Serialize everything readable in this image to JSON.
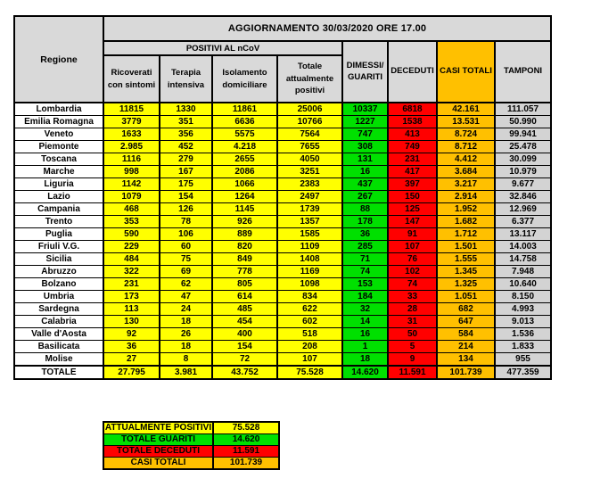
{
  "colors": {
    "positivi": "#FFFF00",
    "guariti": "#00E000",
    "deceduti": "#FF0000",
    "casi_totali": "#FFC000",
    "tamponi": "#D3D3D3",
    "header_bg": "#D9D9D9",
    "row_bg": "#FFFFFF",
    "border": "#000000"
  },
  "chart_data": {
    "type": "table",
    "title": "AGGIORNAMENTO 30/03/2020 ORE 17.00",
    "header": {
      "region_col": "Regione",
      "positivi_group": "POSITIVI AL nCoV",
      "positivi_cols": [
        "Ricoverati\ncon sintomi",
        "Terapia\nintensiva",
        "Isolamento\ndomiciliare",
        "Totale\nattualmente\npositivi"
      ],
      "right_cols": [
        "DIMESSI/\nGUARITI",
        "DECEDUTI",
        "CASI TOTALI",
        "TAMPONI"
      ]
    },
    "columns": [
      "Regione",
      "Ricoverati con sintomi",
      "Terapia intensiva",
      "Isolamento domiciliare",
      "Totale attualmente positivi",
      "DIMESSI/GUARITI",
      "DECEDUTI",
      "CASI TOTALI",
      "TAMPONI"
    ],
    "rows": [
      {
        "region": "Lombardia",
        "values": [
          "11815",
          "1330",
          "11861",
          "25006",
          "10337",
          "6818",
          "42.161",
          "111.057"
        ]
      },
      {
        "region": "Emilia Romagna",
        "values": [
          "3779",
          "351",
          "6636",
          "10766",
          "1227",
          "1538",
          "13.531",
          "50.990"
        ]
      },
      {
        "region": "Veneto",
        "values": [
          "1633",
          "356",
          "5575",
          "7564",
          "747",
          "413",
          "8.724",
          "99.941"
        ]
      },
      {
        "region": "Piemonte",
        "values": [
          "2.985",
          "452",
          "4.218",
          "7655",
          "308",
          "749",
          "8.712",
          "25.478"
        ]
      },
      {
        "region": "Toscana",
        "values": [
          "1116",
          "279",
          "2655",
          "4050",
          "131",
          "231",
          "4.412",
          "30.099"
        ]
      },
      {
        "region": "Marche",
        "values": [
          "998",
          "167",
          "2086",
          "3251",
          "16",
          "417",
          "3.684",
          "10.979"
        ]
      },
      {
        "region": "Liguria",
        "values": [
          "1142",
          "175",
          "1066",
          "2383",
          "437",
          "397",
          "3.217",
          "9.677"
        ]
      },
      {
        "region": "Lazio",
        "values": [
          "1079",
          "154",
          "1264",
          "2497",
          "267",
          "150",
          "2.914",
          "32.846"
        ]
      },
      {
        "region": "Campania",
        "values": [
          "468",
          "126",
          "1145",
          "1739",
          "88",
          "125",
          "1.952",
          "12.969"
        ]
      },
      {
        "region": "Trento",
        "values": [
          "353",
          "78",
          "926",
          "1357",
          "178",
          "147",
          "1.682",
          "6.377"
        ]
      },
      {
        "region": "Puglia",
        "values": [
          "590",
          "106",
          "889",
          "1585",
          "36",
          "91",
          "1.712",
          "13.117"
        ]
      },
      {
        "region": "Friuli V.G.",
        "values": [
          "229",
          "60",
          "820",
          "1109",
          "285",
          "107",
          "1.501",
          "14.003"
        ]
      },
      {
        "region": "Sicilia",
        "values": [
          "484",
          "75",
          "849",
          "1408",
          "71",
          "76",
          "1.555",
          "14.758"
        ]
      },
      {
        "region": "Abruzzo",
        "values": [
          "322",
          "69",
          "778",
          "1169",
          "74",
          "102",
          "1.345",
          "7.948"
        ]
      },
      {
        "region": "Bolzano",
        "values": [
          "231",
          "62",
          "805",
          "1098",
          "153",
          "74",
          "1.325",
          "10.640"
        ]
      },
      {
        "region": "Umbria",
        "values": [
          "173",
          "47",
          "614",
          "834",
          "184",
          "33",
          "1.051",
          "8.150"
        ]
      },
      {
        "region": "Sardegna",
        "values": [
          "113",
          "24",
          "485",
          "622",
          "32",
          "28",
          "682",
          "4.993"
        ]
      },
      {
        "region": "Calabria",
        "values": [
          "130",
          "18",
          "454",
          "602",
          "14",
          "31",
          "647",
          "9.013"
        ]
      },
      {
        "region": "Valle d'Aosta",
        "values": [
          "92",
          "26",
          "400",
          "518",
          "16",
          "50",
          "584",
          "1.536"
        ]
      },
      {
        "region": "Basilicata",
        "values": [
          "36",
          "18",
          "154",
          "208",
          "1",
          "5",
          "214",
          "1.833"
        ]
      },
      {
        "region": "Molise",
        "values": [
          "27",
          "8",
          "72",
          "107",
          "18",
          "9",
          "134",
          "955"
        ]
      }
    ],
    "total_row": {
      "region": "TOTALE",
      "values": [
        "27.795",
        "3.981",
        "43.752",
        "75.528",
        "14.620",
        "11.591",
        "101.739",
        "477.359"
      ]
    },
    "summary_rows": [
      {
        "label": "ATTUALMENTE POSITIVI",
        "value": "75.528",
        "color_key": "positivi"
      },
      {
        "label": "TOTALE GUARITI",
        "value": "14.620",
        "color_key": "guariti"
      },
      {
        "label": "TOTALE DECEDUTI",
        "value": "11.591",
        "color_key": "deceduti"
      },
      {
        "label": "CASI TOTALI",
        "value": "101.739",
        "color_key": "casi_totali"
      }
    ]
  }
}
